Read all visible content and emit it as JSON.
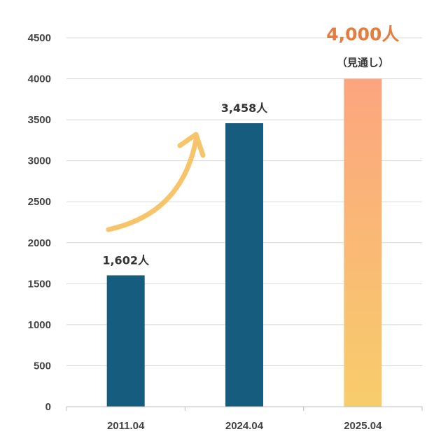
{
  "chart_data": {
    "type": "bar",
    "categories": [
      "2011.04",
      "2024.04",
      "2025.04"
    ],
    "values": [
      1602,
      3458,
      4000
    ],
    "data_labels": [
      "1,602人",
      "3,458人",
      "4,000人"
    ],
    "annotation": "（見通し）",
    "yticks": [
      "0",
      "500",
      "1000",
      "1500",
      "2000",
      "2500",
      "3000",
      "3500",
      "4000",
      "4500"
    ],
    "ylim": [
      0,
      4500
    ],
    "grid": true,
    "title": "",
    "xlabel": "",
    "ylabel": ""
  },
  "colors": {
    "bar": "#155c7e",
    "forecast_top": "#fca57f",
    "forecast_bottom": "#f7cd6b",
    "highlight_text": "#e47c3e",
    "arrow": "#f7c46a",
    "grid": "#d9d9d9",
    "axis": "#bfbfbf"
  }
}
